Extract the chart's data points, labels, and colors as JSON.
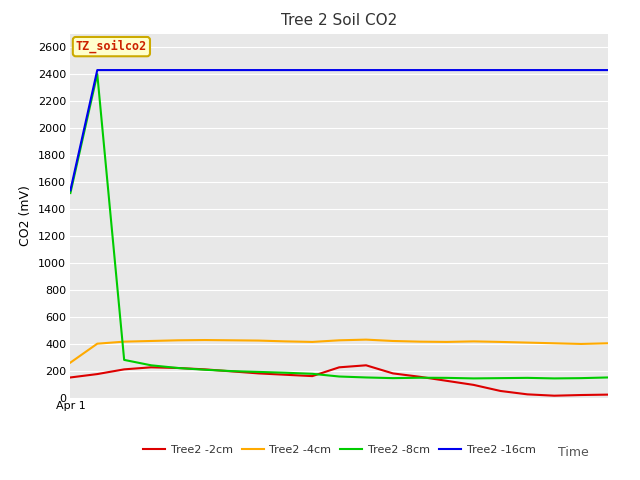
{
  "title": "Tree 2 Soil CO2",
  "xlabel": "Time",
  "ylabel": "CO2 (mV)",
  "annotation_text": "TZ_soilco2",
  "annotation_color": "#cc2200",
  "annotation_bg": "#ffffcc",
  "annotation_border": "#ccaa00",
  "ylim": [
    0,
    2700
  ],
  "yticks": [
    0,
    200,
    400,
    600,
    800,
    1000,
    1200,
    1400,
    1600,
    1800,
    2000,
    2200,
    2400,
    2600
  ],
  "fig_bg": "#ffffff",
  "plot_bg": "#e8e8e8",
  "series": {
    "Tree2 -2cm": {
      "color": "#dd0000",
      "x": [
        0,
        1,
        2,
        3,
        4,
        5,
        6,
        7,
        8,
        9,
        10,
        11,
        12,
        13,
        14,
        15,
        16,
        17,
        18,
        19,
        20
      ],
      "y": [
        155,
        180,
        215,
        230,
        225,
        215,
        200,
        185,
        175,
        165,
        230,
        245,
        185,
        160,
        130,
        100,
        55,
        30,
        20,
        25,
        28
      ]
    },
    "Tree2 -4cm": {
      "color": "#ffaa00",
      "x": [
        0,
        1,
        2,
        3,
        4,
        5,
        6,
        7,
        8,
        9,
        10,
        11,
        12,
        13,
        14,
        15,
        16,
        17,
        18,
        19,
        20
      ],
      "y": [
        265,
        405,
        420,
        425,
        430,
        432,
        430,
        428,
        422,
        418,
        430,
        435,
        425,
        420,
        418,
        422,
        418,
        413,
        408,
        403,
        408
      ]
    },
    "Tree2 -8cm": {
      "color": "#00cc00",
      "x": [
        0,
        1,
        2,
        3,
        4,
        5,
        6,
        7,
        8,
        9,
        10,
        11,
        12,
        13,
        14,
        15,
        16,
        17,
        18,
        19,
        20
      ],
      "y": [
        1520,
        2400,
        285,
        245,
        225,
        212,
        202,
        196,
        190,
        182,
        162,
        155,
        150,
        153,
        152,
        148,
        150,
        152,
        148,
        150,
        155
      ]
    },
    "Tree2 -16cm": {
      "color": "#0000ee",
      "x": [
        0,
        1,
        2,
        3,
        4,
        5,
        6,
        7,
        8,
        9,
        10,
        11,
        12,
        13,
        14,
        15,
        16,
        17,
        18,
        19,
        20
      ],
      "y": [
        1540,
        2430,
        2430,
        2430,
        2430,
        2430,
        2430,
        2430,
        2430,
        2430,
        2430,
        2430,
        2430,
        2430,
        2430,
        2430,
        2430,
        2430,
        2430,
        2430,
        2430
      ]
    }
  },
  "xtick_label": "Apr 1",
  "xtick_pos": 0,
  "grid_color": "#ffffff",
  "line_width": 1.5
}
